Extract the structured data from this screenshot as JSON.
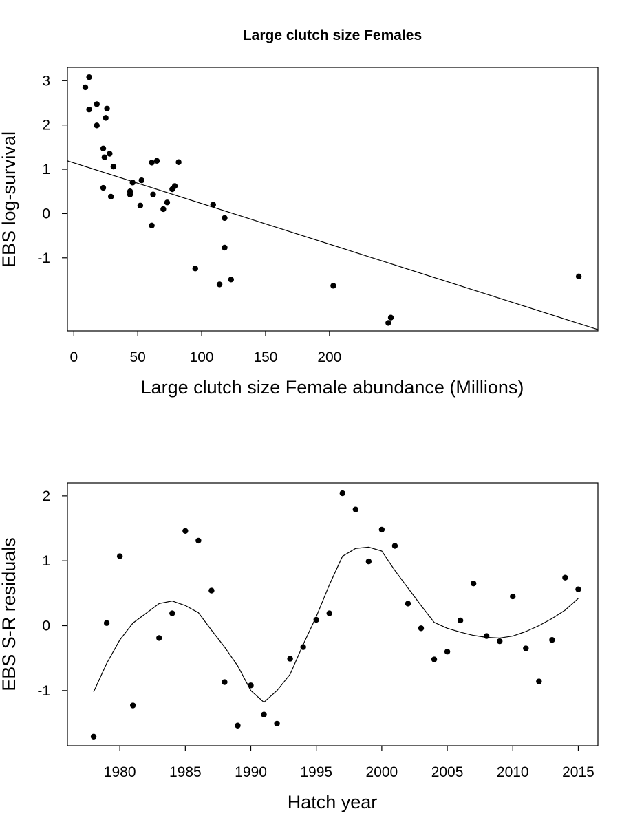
{
  "figure": {
    "title": "Large clutch size Females"
  },
  "chart_data": [
    {
      "type": "scatter",
      "title": "Large clutch size Females",
      "xlabel": "Large clutch size Female abundance (Millions)",
      "ylabel": "EBS log-survival",
      "xlim": [
        -5,
        410
      ],
      "ylim": [
        -2.65,
        3.3
      ],
      "x_ticks": [
        0,
        50,
        100,
        150,
        200
      ],
      "y_ticks": [
        -1,
        0,
        1,
        2,
        3
      ],
      "grid": false,
      "points": [
        {
          "x": 9,
          "y": 2.85
        },
        {
          "x": 12,
          "y": 3.08
        },
        {
          "x": 12,
          "y": 2.35
        },
        {
          "x": 18,
          "y": 2.47
        },
        {
          "x": 18,
          "y": 1.99
        },
        {
          "x": 23,
          "y": 0.58
        },
        {
          "x": 23,
          "y": 1.47
        },
        {
          "x": 24,
          "y": 1.27
        },
        {
          "x": 25,
          "y": 2.16
        },
        {
          "x": 26,
          "y": 2.37
        },
        {
          "x": 28,
          "y": 1.35
        },
        {
          "x": 29,
          "y": 0.38
        },
        {
          "x": 31,
          "y": 1.06
        },
        {
          "x": 44,
          "y": 0.5
        },
        {
          "x": 44,
          "y": 0.43
        },
        {
          "x": 46,
          "y": 0.7
        },
        {
          "x": 52,
          "y": 0.18
        },
        {
          "x": 53,
          "y": 0.75
        },
        {
          "x": 61,
          "y": -0.27
        },
        {
          "x": 61,
          "y": 1.15
        },
        {
          "x": 62,
          "y": 0.43
        },
        {
          "x": 65,
          "y": 1.19
        },
        {
          "x": 70,
          "y": 0.1
        },
        {
          "x": 73,
          "y": 0.25
        },
        {
          "x": 77,
          "y": 0.55
        },
        {
          "x": 79,
          "y": 0.62
        },
        {
          "x": 82,
          "y": 1.16
        },
        {
          "x": 95,
          "y": -1.24
        },
        {
          "x": 109,
          "y": 0.2
        },
        {
          "x": 114,
          "y": -1.6
        },
        {
          "x": 118,
          "y": -0.1
        },
        {
          "x": 118,
          "y": -0.77
        },
        {
          "x": 123,
          "y": -1.49
        },
        {
          "x": 203,
          "y": -1.63
        },
        {
          "x": 246,
          "y": -2.47
        },
        {
          "x": 248,
          "y": -2.35
        },
        {
          "x": 395,
          "y": -1.42
        }
      ],
      "fit_line": {
        "type": "linear",
        "points": [
          {
            "x": -5,
            "y": 1.19
          },
          {
            "x": 410,
            "y": -2.62
          }
        ]
      }
    },
    {
      "type": "scatter",
      "title": "",
      "xlabel": "Hatch year",
      "ylabel": "EBS S-R residuals",
      "xlim": [
        1976,
        2016.5
      ],
      "ylim": [
        -1.85,
        2.2
      ],
      "x_ticks": [
        1980,
        1985,
        1990,
        1995,
        2000,
        2005,
        2010,
        2015
      ],
      "y_ticks": [
        -1,
        0,
        1,
        2
      ],
      "grid": false,
      "points": [
        {
          "x": 1978,
          "y": -1.71
        },
        {
          "x": 1979,
          "y": 0.04
        },
        {
          "x": 1980,
          "y": 1.07
        },
        {
          "x": 1981,
          "y": -1.23
        },
        {
          "x": 1983,
          "y": -0.19
        },
        {
          "x": 1984,
          "y": 0.19
        },
        {
          "x": 1985,
          "y": 1.46
        },
        {
          "x": 1986,
          "y": 1.31
        },
        {
          "x": 1987,
          "y": 0.54
        },
        {
          "x": 1988,
          "y": -0.87
        },
        {
          "x": 1989,
          "y": -1.54
        },
        {
          "x": 1990,
          "y": -0.92
        },
        {
          "x": 1991,
          "y": -1.37
        },
        {
          "x": 1992,
          "y": -1.51
        },
        {
          "x": 1993,
          "y": -0.51
        },
        {
          "x": 1994,
          "y": -0.33
        },
        {
          "x": 1995,
          "y": 0.09
        },
        {
          "x": 1996,
          "y": 0.19
        },
        {
          "x": 1997,
          "y": 2.04
        },
        {
          "x": 1998,
          "y": 1.79
        },
        {
          "x": 1999,
          "y": 0.99
        },
        {
          "x": 2000,
          "y": 1.48
        },
        {
          "x": 2001,
          "y": 1.23
        },
        {
          "x": 2002,
          "y": 0.34
        },
        {
          "x": 2003,
          "y": -0.04
        },
        {
          "x": 2004,
          "y": -0.52
        },
        {
          "x": 2005,
          "y": -0.4
        },
        {
          "x": 2006,
          "y": 0.08
        },
        {
          "x": 2007,
          "y": 0.65
        },
        {
          "x": 2008,
          "y": -0.16
        },
        {
          "x": 2009,
          "y": -0.24
        },
        {
          "x": 2010,
          "y": 0.45
        },
        {
          "x": 2011,
          "y": -0.35
        },
        {
          "x": 2012,
          "y": -0.86
        },
        {
          "x": 2013,
          "y": -0.22
        },
        {
          "x": 2014,
          "y": 0.74
        },
        {
          "x": 2015,
          "y": 0.56
        }
      ],
      "smooth_line": {
        "type": "smoother",
        "points": [
          {
            "x": 1978,
            "y": -1.02
          },
          {
            "x": 1979,
            "y": -0.58
          },
          {
            "x": 1980,
            "y": -0.22
          },
          {
            "x": 1981,
            "y": 0.04
          },
          {
            "x": 1982,
            "y": 0.19
          },
          {
            "x": 1983,
            "y": 0.34
          },
          {
            "x": 1984,
            "y": 0.38
          },
          {
            "x": 1985,
            "y": 0.31
          },
          {
            "x": 1986,
            "y": 0.2
          },
          {
            "x": 1987,
            "y": -0.07
          },
          {
            "x": 1988,
            "y": -0.33
          },
          {
            "x": 1989,
            "y": -0.62
          },
          {
            "x": 1990,
            "y": -1.0
          },
          {
            "x": 1991,
            "y": -1.18
          },
          {
            "x": 1992,
            "y": -1.0
          },
          {
            "x": 1993,
            "y": -0.75
          },
          {
            "x": 1994,
            "y": -0.29
          },
          {
            "x": 1995,
            "y": 0.14
          },
          {
            "x": 1996,
            "y": 0.63
          },
          {
            "x": 1997,
            "y": 1.07
          },
          {
            "x": 1998,
            "y": 1.19
          },
          {
            "x": 1999,
            "y": 1.21
          },
          {
            "x": 2000,
            "y": 1.15
          },
          {
            "x": 2001,
            "y": 0.85
          },
          {
            "x": 2002,
            "y": 0.58
          },
          {
            "x": 2003,
            "y": 0.31
          },
          {
            "x": 2004,
            "y": 0.05
          },
          {
            "x": 2005,
            "y": -0.04
          },
          {
            "x": 2006,
            "y": -0.1
          },
          {
            "x": 2007,
            "y": -0.15
          },
          {
            "x": 2008,
            "y": -0.18
          },
          {
            "x": 2009,
            "y": -0.19
          },
          {
            "x": 2010,
            "y": -0.16
          },
          {
            "x": 2011,
            "y": -0.09
          },
          {
            "x": 2012,
            "y": 0.0
          },
          {
            "x": 2013,
            "y": 0.11
          },
          {
            "x": 2014,
            "y": 0.24
          },
          {
            "x": 2015,
            "y": 0.42
          }
        ]
      }
    }
  ]
}
